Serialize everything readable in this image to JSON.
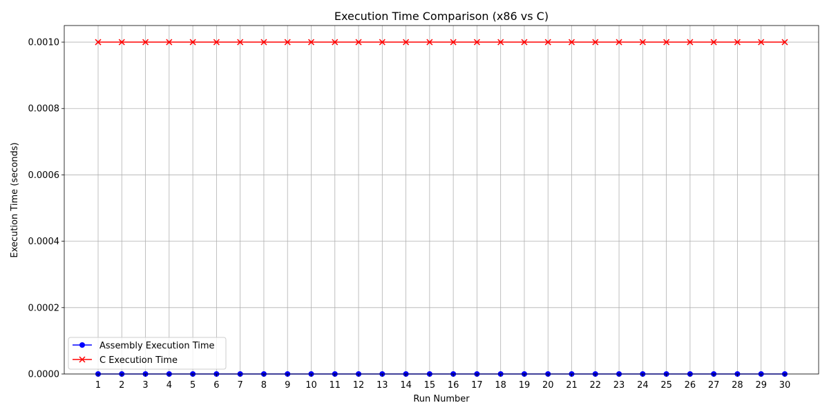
{
  "chart_data": {
    "type": "line",
    "title": "Execution Time Comparison (x86 vs C)",
    "xlabel": "Run Number",
    "ylabel": "Execution Time (seconds)",
    "x": [
      1,
      2,
      3,
      4,
      5,
      6,
      7,
      8,
      9,
      10,
      11,
      12,
      13,
      14,
      15,
      16,
      17,
      18,
      19,
      20,
      21,
      22,
      23,
      24,
      25,
      26,
      27,
      28,
      29,
      30
    ],
    "xlim": [
      -0.43,
      31.43
    ],
    "ylim": [
      0,
      0.00105
    ],
    "yticks": [
      "0.0000",
      "0.0002",
      "0.0004",
      "0.0006",
      "0.0008",
      "0.0010"
    ],
    "ytick_values": [
      0,
      0.0002,
      0.0004,
      0.0006,
      0.0008,
      0.001
    ],
    "grid": true,
    "legend_position": "lower-left",
    "series": [
      {
        "name": "Assembly Execution Time",
        "color": "#0000ff",
        "marker": "circle",
        "values": [
          0,
          0,
          0,
          0,
          0,
          0,
          0,
          0,
          0,
          0,
          0,
          0,
          0,
          0,
          0,
          0,
          0,
          0,
          0,
          0,
          0,
          0,
          0,
          0,
          0,
          0,
          0,
          0,
          0,
          0
        ]
      },
      {
        "name": "C Execution Time",
        "color": "#ff0000",
        "marker": "x",
        "values": [
          0.001,
          0.001,
          0.001,
          0.001,
          0.001,
          0.001,
          0.001,
          0.001,
          0.001,
          0.001,
          0.001,
          0.001,
          0.001,
          0.001,
          0.001,
          0.001,
          0.001,
          0.001,
          0.001,
          0.001,
          0.001,
          0.001,
          0.001,
          0.001,
          0.001,
          0.001,
          0.001,
          0.001,
          0.001,
          0.001
        ]
      }
    ]
  }
}
